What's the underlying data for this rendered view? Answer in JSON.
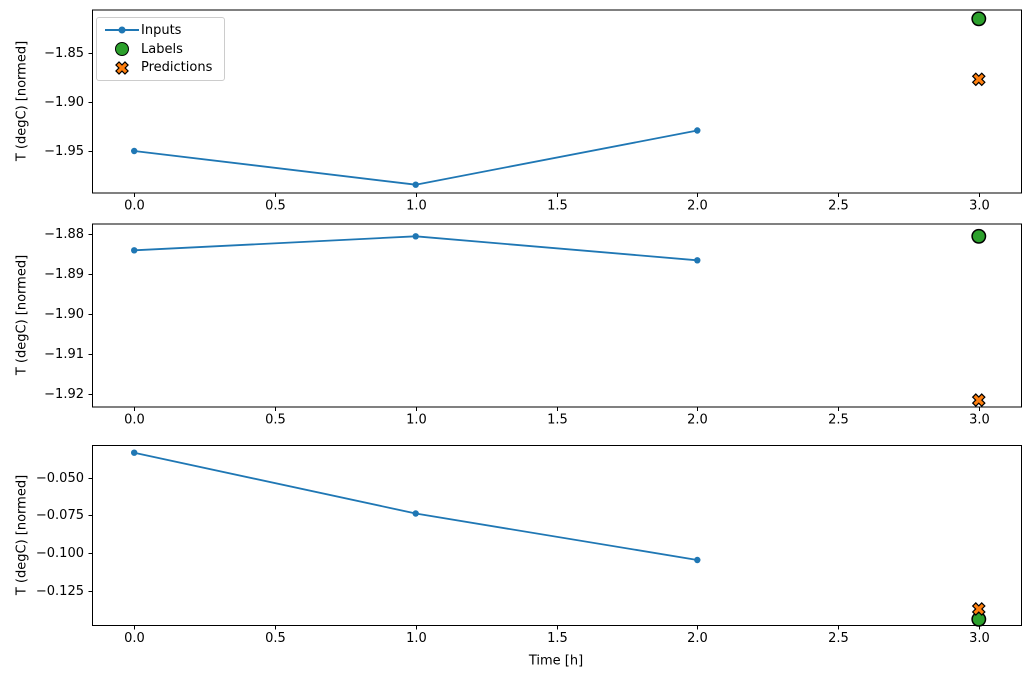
{
  "figure": {
    "background": "#ffffff"
  },
  "legend": {
    "position": "upper left",
    "items": [
      {
        "label": "Inputs",
        "marker": "line-dot",
        "color": "#1f77b4"
      },
      {
        "label": "Labels",
        "marker": "circle",
        "color": "#2ca02c"
      },
      {
        "label": "Predictions",
        "marker": "X",
        "color": "#ff7f0e"
      }
    ]
  },
  "chart_data": [
    {
      "type": "line",
      "title": "",
      "ylabel": "T (degC) [normed]",
      "xlabel": "",
      "grid": false,
      "xlim": [
        -0.15,
        3.15
      ],
      "ylim": [
        -1.9925,
        -1.805
      ],
      "xticks": {
        "values": [
          0.0,
          0.5,
          1.0,
          1.5,
          2.0,
          2.5,
          3.0
        ],
        "labels": [
          "0.0",
          "0.5",
          "1.0",
          "1.5",
          "2.0",
          "2.5",
          "3.0"
        ]
      },
      "yticks": {
        "values": [
          -1.85,
          -1.9,
          -1.95
        ],
        "labels": [
          "−1.85",
          "−1.90",
          "−1.95"
        ]
      },
      "series": [
        {
          "name": "Inputs",
          "type": "line",
          "marker": "dot",
          "color": "#1f77b4",
          "x": [
            0,
            1,
            2
          ],
          "y": [
            -1.95,
            -1.9845,
            -1.929
          ]
        },
        {
          "name": "Labels",
          "type": "scatter",
          "marker": "circle",
          "color": "#2ca02c",
          "x": [
            3
          ],
          "y": [
            -1.8145
          ]
        },
        {
          "name": "Predictions",
          "type": "scatter",
          "marker": "X",
          "color": "#ff7f0e",
          "x": [
            3
          ],
          "y": [
            -1.8765
          ]
        }
      ]
    },
    {
      "type": "line",
      "title": "",
      "ylabel": "T (degC) [normed]",
      "xlabel": "",
      "grid": false,
      "xlim": [
        -0.15,
        3.15
      ],
      "ylim": [
        -1.9231,
        -1.8773
      ],
      "xticks": {
        "values": [
          0.0,
          0.5,
          1.0,
          1.5,
          2.0,
          2.5,
          3.0
        ],
        "labels": [
          "0.0",
          "0.5",
          "1.0",
          "1.5",
          "2.0",
          "2.5",
          "3.0"
        ]
      },
      "yticks": {
        "values": [
          -1.88,
          -1.89,
          -1.9,
          -1.91,
          -1.92
        ],
        "labels": [
          "−1.88",
          "−1.89",
          "−1.90",
          "−1.91",
          "−1.92"
        ]
      },
      "series": [
        {
          "name": "Inputs",
          "type": "line",
          "marker": "dot",
          "color": "#1f77b4",
          "x": [
            0,
            1,
            2
          ],
          "y": [
            -1.884,
            -1.8805,
            -1.8865
          ]
        },
        {
          "name": "Labels",
          "type": "scatter",
          "marker": "circle",
          "color": "#2ca02c",
          "x": [
            3
          ],
          "y": [
            -1.8805
          ]
        },
        {
          "name": "Predictions",
          "type": "scatter",
          "marker": "X",
          "color": "#ff7f0e",
          "x": [
            3
          ],
          "y": [
            -1.9215
          ]
        }
      ]
    },
    {
      "type": "line",
      "title": "",
      "ylabel": "T (degC) [normed]",
      "xlabel": "Time [h]",
      "grid": false,
      "xlim": [
        -0.15,
        3.15
      ],
      "ylim": [
        -0.1475,
        -0.0284
      ],
      "xticks": {
        "values": [
          0.0,
          0.5,
          1.0,
          1.5,
          2.0,
          2.5,
          3.0
        ],
        "labels": [
          "0.0",
          "0.5",
          "1.0",
          "1.5",
          "2.0",
          "2.5",
          "3.0"
        ]
      },
      "yticks": {
        "values": [
          -0.05,
          -0.075,
          -0.1,
          -0.125
        ],
        "labels": [
          "−0.050",
          "−0.075",
          "−0.100",
          "−0.125"
        ]
      },
      "series": [
        {
          "name": "Inputs",
          "type": "line",
          "marker": "dot",
          "color": "#1f77b4",
          "x": [
            0,
            1,
            2
          ],
          "y": [
            -0.0335,
            -0.0737,
            -0.1045
          ]
        },
        {
          "name": "Labels",
          "type": "scatter",
          "marker": "circle",
          "color": "#2ca02c",
          "x": [
            3
          ],
          "y": [
            -0.1437
          ]
        },
        {
          "name": "Predictions",
          "type": "scatter",
          "marker": "X",
          "color": "#ff7f0e",
          "x": [
            3
          ],
          "y": [
            -0.1369
          ]
        }
      ]
    }
  ]
}
